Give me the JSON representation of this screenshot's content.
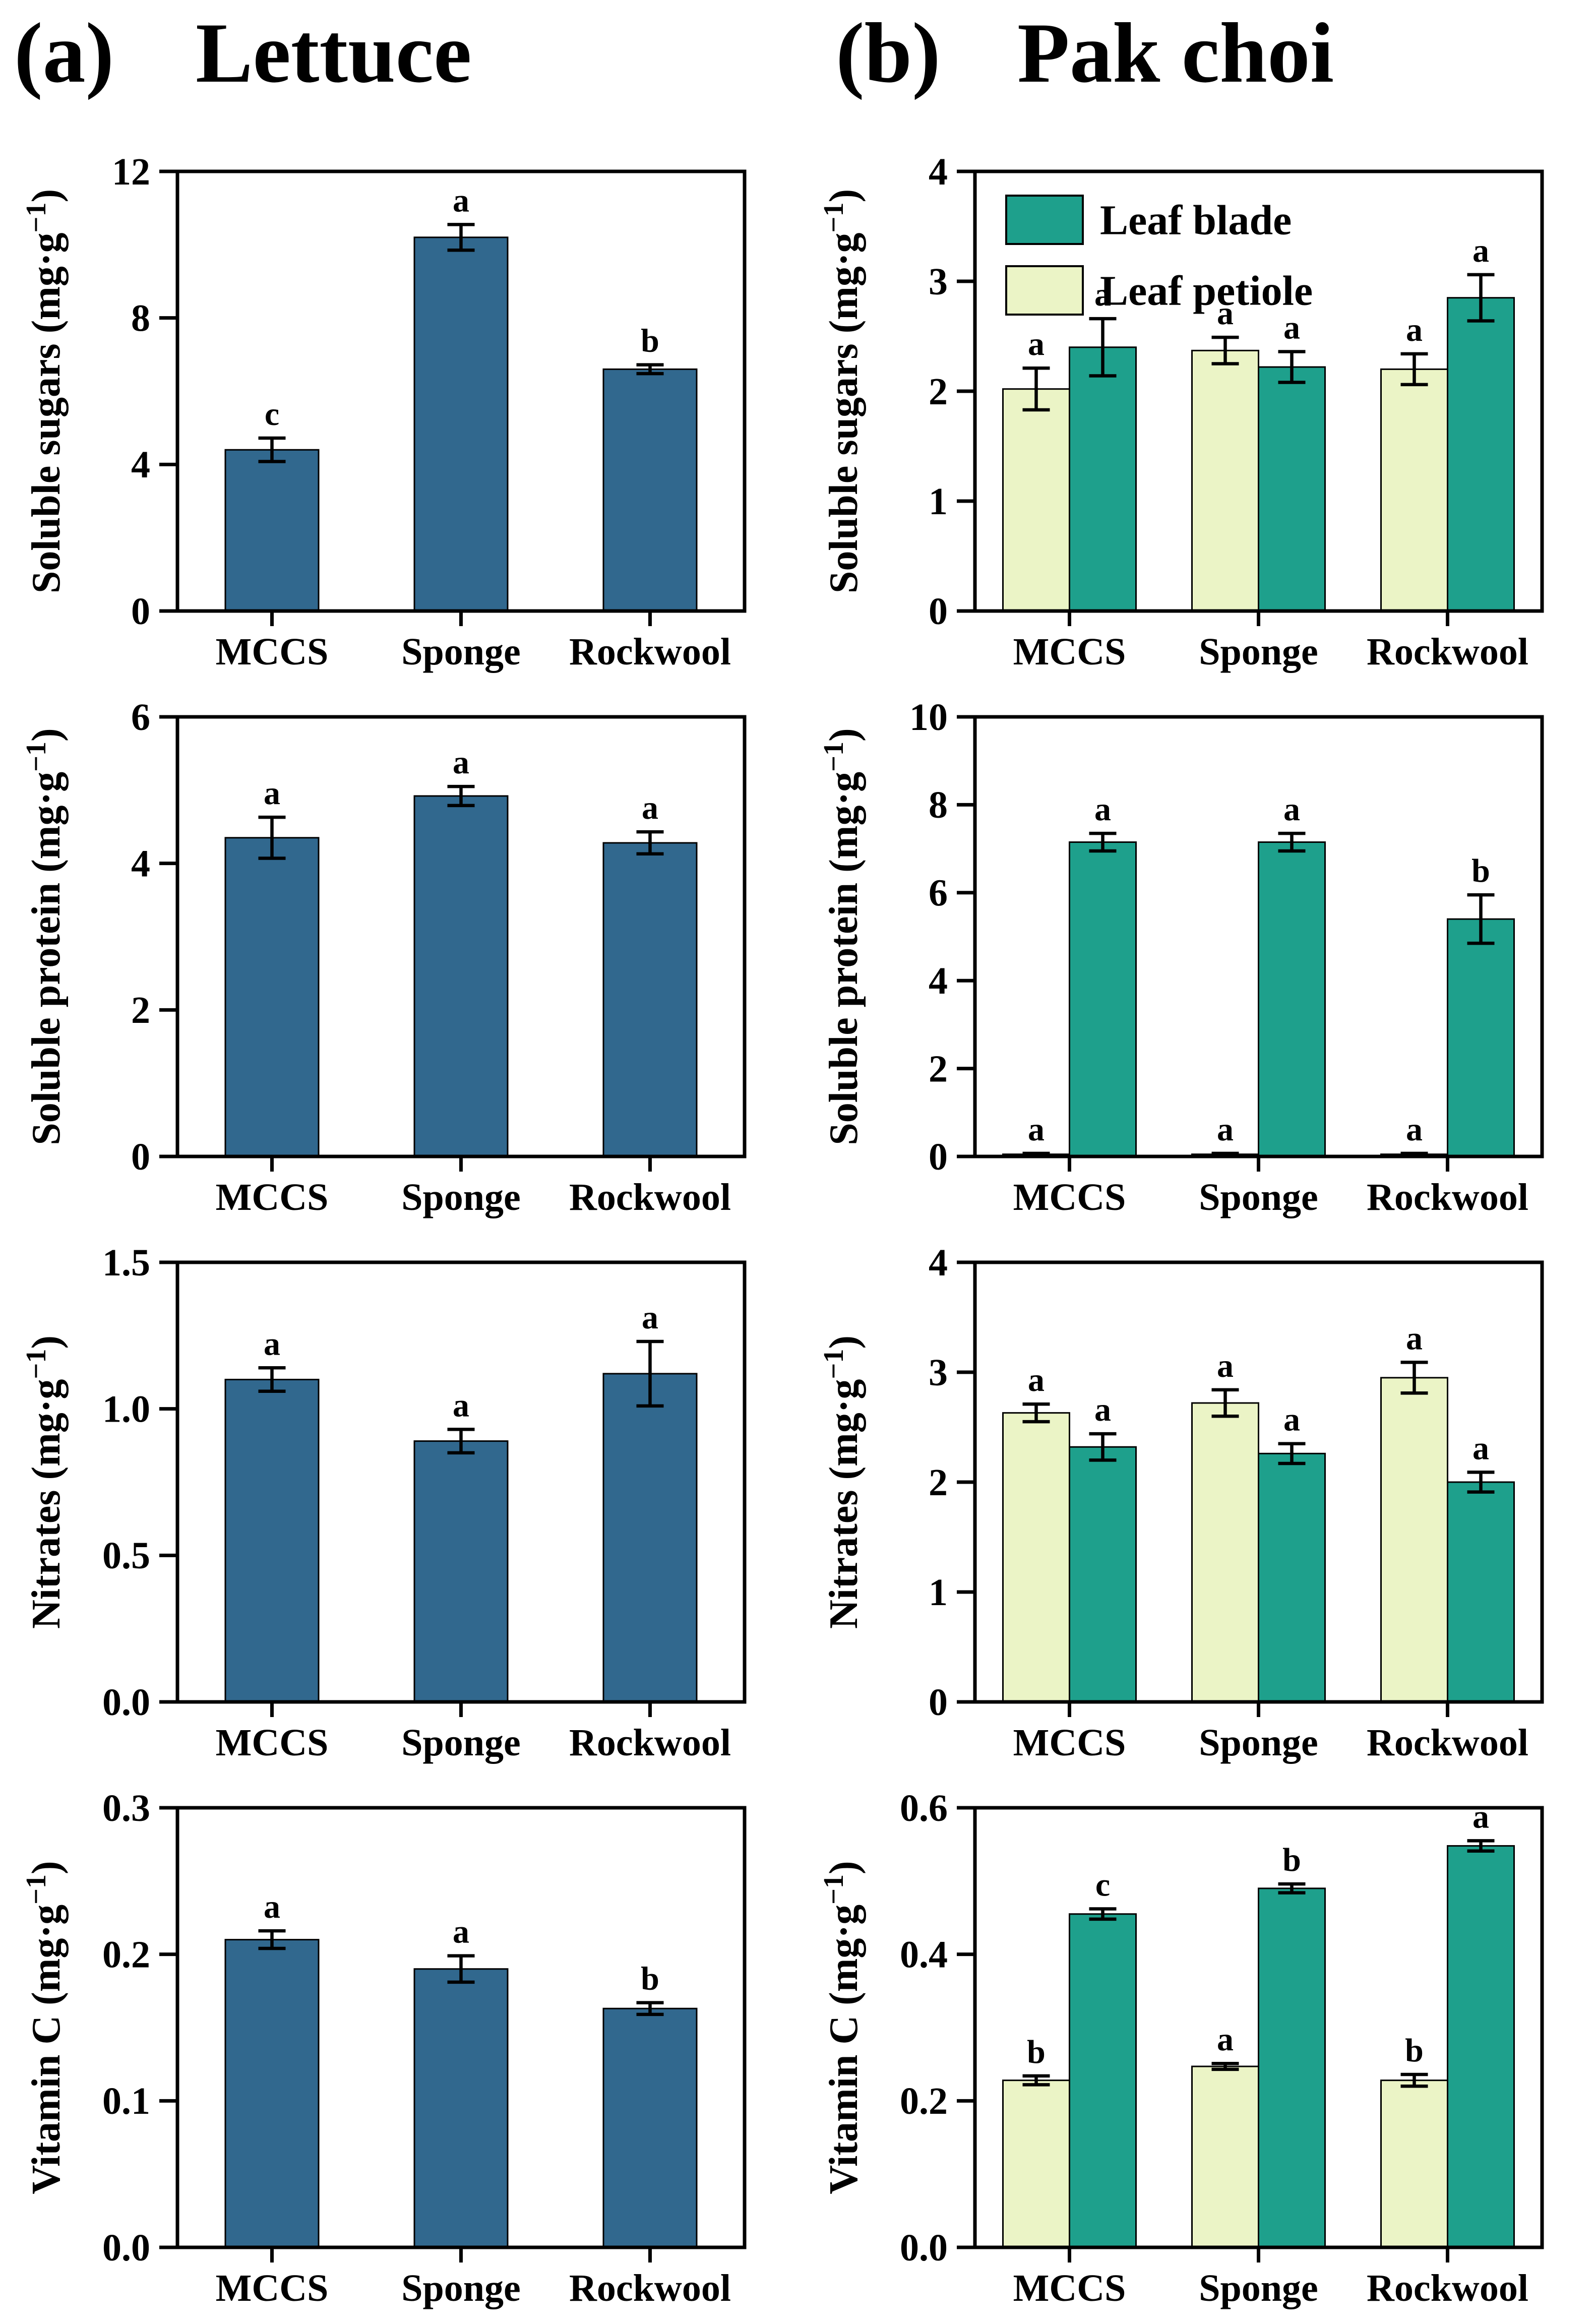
{
  "figure": {
    "panels": [
      {
        "id": "a",
        "label": "(a)",
        "title": "Lettuce"
      },
      {
        "id": "b",
        "label": "(b)",
        "title": "Pak choi"
      }
    ]
  },
  "colors": {
    "lettuce_bar": "#31688E",
    "leaf_blade": "#1EA08C",
    "leaf_petiole": "#EBF4C6",
    "bar_edge": "#000000",
    "axis": "#000000"
  },
  "legend": {
    "items": [
      {
        "label": "Leaf blade",
        "color_key": "leaf_blade"
      },
      {
        "label": "Leaf petiole",
        "color_key": "leaf_petiole"
      }
    ]
  },
  "chart_data": [
    {
      "type": "bar",
      "panel": "a",
      "metric": "Soluble sugars",
      "ylabel": "Soluble sugars (mg·g⁻¹)",
      "ylim": [
        0,
        12
      ],
      "yticks": [
        0,
        4,
        8,
        12
      ],
      "ytick_labels": [
        "0",
        "4",
        "8",
        "12"
      ],
      "categories": [
        "MCCS",
        "Sponge",
        "Rockwool"
      ],
      "grid": false,
      "legend": false,
      "series": [
        {
          "name": "Lettuce",
          "color_key": "lettuce_bar",
          "values": [
            4.4,
            10.2,
            6.6
          ],
          "errors": [
            0.32,
            0.35,
            0.12
          ],
          "letters": [
            "c",
            "a",
            "b"
          ]
        }
      ]
    },
    {
      "type": "bar",
      "panel": "b",
      "metric": "Soluble sugars",
      "ylabel": "Soluble sugars (mg·g⁻¹)",
      "ylim": [
        0,
        4
      ],
      "yticks": [
        0,
        1,
        2,
        3,
        4
      ],
      "ytick_labels": [
        "0",
        "1",
        "2",
        "3",
        "4"
      ],
      "categories": [
        "MCCS",
        "Sponge",
        "Rockwool"
      ],
      "grid": false,
      "legend": true,
      "legend_position": "upper-left",
      "series": [
        {
          "name": "Leaf petiole",
          "color_key": "leaf_petiole",
          "values": [
            2.02,
            2.37,
            2.2
          ],
          "errors": [
            0.19,
            0.12,
            0.14
          ],
          "letters": [
            "a",
            "a",
            "a"
          ]
        },
        {
          "name": "Leaf blade",
          "color_key": "leaf_blade",
          "values": [
            2.4,
            2.22,
            2.85
          ],
          "errors": [
            0.26,
            0.14,
            0.21
          ],
          "letters": [
            "a",
            "a",
            "a"
          ]
        }
      ]
    },
    {
      "type": "bar",
      "panel": "a",
      "metric": "Soluble protein",
      "ylabel": "Soluble protein (mg·g⁻¹)",
      "ylim": [
        0,
        6
      ],
      "yticks": [
        0,
        2,
        4,
        6
      ],
      "ytick_labels": [
        "0",
        "2",
        "4",
        "6"
      ],
      "categories": [
        "MCCS",
        "Sponge",
        "Rockwool"
      ],
      "grid": false,
      "legend": false,
      "series": [
        {
          "name": "Lettuce",
          "color_key": "lettuce_bar",
          "values": [
            4.35,
            4.92,
            4.28
          ],
          "errors": [
            0.28,
            0.13,
            0.15
          ],
          "letters": [
            "a",
            "a",
            "a"
          ]
        }
      ]
    },
    {
      "type": "bar",
      "panel": "b",
      "metric": "Soluble protein",
      "ylabel": "Soluble protein (mg·g⁻¹)",
      "ylim": [
        0,
        10
      ],
      "yticks": [
        0,
        2,
        4,
        6,
        8,
        10
      ],
      "ytick_labels": [
        "0",
        "2",
        "4",
        "6",
        "8",
        "10"
      ],
      "categories": [
        "MCCS",
        "Sponge",
        "Rockwool"
      ],
      "grid": false,
      "legend": false,
      "series": [
        {
          "name": "Leaf petiole",
          "color_key": "leaf_petiole",
          "values": [
            0.05,
            0.05,
            0.05
          ],
          "errors": [
            0.02,
            0.02,
            0.02
          ],
          "letters": [
            "a",
            "a",
            "a"
          ]
        },
        {
          "name": "Leaf blade",
          "color_key": "leaf_blade",
          "values": [
            7.15,
            7.15,
            5.4
          ],
          "errors": [
            0.2,
            0.2,
            0.55
          ],
          "letters": [
            "a",
            "a",
            "b"
          ]
        }
      ]
    },
    {
      "type": "bar",
      "panel": "a",
      "metric": "Nitrates",
      "ylabel": "Nitrates  (mg·g⁻¹)",
      "ylim": [
        0,
        1.5
      ],
      "yticks": [
        0,
        0.5,
        1.0,
        1.5
      ],
      "ytick_labels": [
        "0.0",
        "0.5",
        "1.0",
        "1.5"
      ],
      "categories": [
        "MCCS",
        "Sponge",
        "Rockwool"
      ],
      "grid": false,
      "legend": false,
      "series": [
        {
          "name": "Lettuce",
          "color_key": "lettuce_bar",
          "values": [
            1.1,
            0.89,
            1.12
          ],
          "errors": [
            0.04,
            0.04,
            0.11
          ],
          "letters": [
            "a",
            "a",
            "a"
          ]
        }
      ]
    },
    {
      "type": "bar",
      "panel": "b",
      "metric": "Nitrates",
      "ylabel": "Nitrates  (mg·g⁻¹)",
      "ylim": [
        0,
        4
      ],
      "yticks": [
        0,
        1,
        2,
        3,
        4
      ],
      "ytick_labels": [
        "0",
        "1",
        "2",
        "3",
        "4"
      ],
      "categories": [
        "MCCS",
        "Sponge",
        "Rockwool"
      ],
      "grid": false,
      "legend": false,
      "series": [
        {
          "name": "Leaf petiole",
          "color_key": "leaf_petiole",
          "values": [
            2.63,
            2.72,
            2.95
          ],
          "errors": [
            0.08,
            0.12,
            0.14
          ],
          "letters": [
            "a",
            "a",
            "a"
          ]
        },
        {
          "name": "Leaf blade",
          "color_key": "leaf_blade",
          "values": [
            2.32,
            2.26,
            2.0
          ],
          "errors": [
            0.12,
            0.09,
            0.09
          ],
          "letters": [
            "a",
            "a",
            "a"
          ]
        }
      ]
    },
    {
      "type": "bar",
      "panel": "a",
      "metric": "Vitamin C",
      "ylabel": "Vitamin C (mg·g⁻¹)",
      "ylim": [
        0,
        0.3
      ],
      "yticks": [
        0,
        0.1,
        0.2,
        0.3
      ],
      "ytick_labels": [
        "0.0",
        "0.1",
        "0.2",
        "0.3"
      ],
      "categories": [
        "MCCS",
        "Sponge",
        "Rockwool"
      ],
      "grid": false,
      "legend": false,
      "series": [
        {
          "name": "Lettuce",
          "color_key": "lettuce_bar",
          "values": [
            0.21,
            0.19,
            0.163
          ],
          "errors": [
            0.006,
            0.009,
            0.004
          ],
          "letters": [
            "a",
            "a",
            "b"
          ]
        }
      ]
    },
    {
      "type": "bar",
      "panel": "b",
      "metric": "Vitamin C",
      "ylabel": "Vitamin C (mg·g⁻¹)",
      "ylim": [
        0,
        0.6
      ],
      "yticks": [
        0,
        0.2,
        0.4,
        0.6
      ],
      "ytick_labels": [
        "0.0",
        "0.2",
        "0.4",
        "0.6"
      ],
      "categories": [
        "MCCS",
        "Sponge",
        "Rockwool"
      ],
      "grid": false,
      "legend": false,
      "series": [
        {
          "name": "Leaf petiole",
          "color_key": "leaf_petiole",
          "values": [
            0.228,
            0.247,
            0.228
          ],
          "errors": [
            0.006,
            0.004,
            0.008
          ],
          "letters": [
            "b",
            "a",
            "b"
          ]
        },
        {
          "name": "Leaf blade",
          "color_key": "leaf_blade",
          "values": [
            0.455,
            0.49,
            0.548
          ],
          "errors": [
            0.007,
            0.006,
            0.007
          ],
          "letters": [
            "c",
            "b",
            "a"
          ]
        }
      ]
    }
  ]
}
